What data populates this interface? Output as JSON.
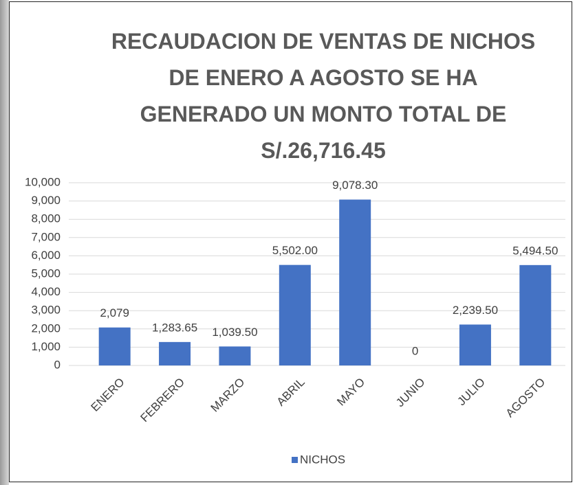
{
  "chart_data": {
    "type": "bar",
    "title": "RECAUDACION DE VENTAS DE NICHOS DE ENERO A AGOSTO SE HA GENERADO UN MONTO TOTAL DE S/.26,716.45",
    "categories": [
      "ENERO",
      "FEBRERO",
      "MARZO",
      "ABRIL",
      "MAYO",
      "JUNIO",
      "JULIO",
      "AGOSTO"
    ],
    "series": [
      {
        "name": "NICHOS",
        "color": "#4472c4",
        "values": [
          2079,
          1283.65,
          1039.5,
          5502,
          9078.3,
          0,
          2239.5,
          5494.5
        ],
        "value_labels": [
          "2,079",
          "1,283.65",
          "1,039.50",
          "5,502.00",
          "9,078.30",
          "0",
          "2,239.50",
          "5,494.50"
        ]
      }
    ],
    "ylim": [
      0,
      10000
    ],
    "yticks": [
      0,
      {
        "value": 1000,
        "label": "1,000"
      },
      {
        "value": 2000,
        "label": "2,000"
      },
      {
        "value": 3000,
        "label": "3,000"
      },
      {
        "value": 4000,
        "label": "4,000"
      },
      {
        "value": 5000,
        "label": "5,000"
      },
      {
        "value": 6000,
        "label": "6,000"
      },
      {
        "value": 7000,
        "label": "7,000"
      },
      {
        "value": 8000,
        "label": "8,000"
      },
      {
        "value": 9000,
        "label": "9,000"
      },
      {
        "value": 10000,
        "label": "10,000"
      }
    ],
    "grid": true,
    "legend": "bottom"
  }
}
